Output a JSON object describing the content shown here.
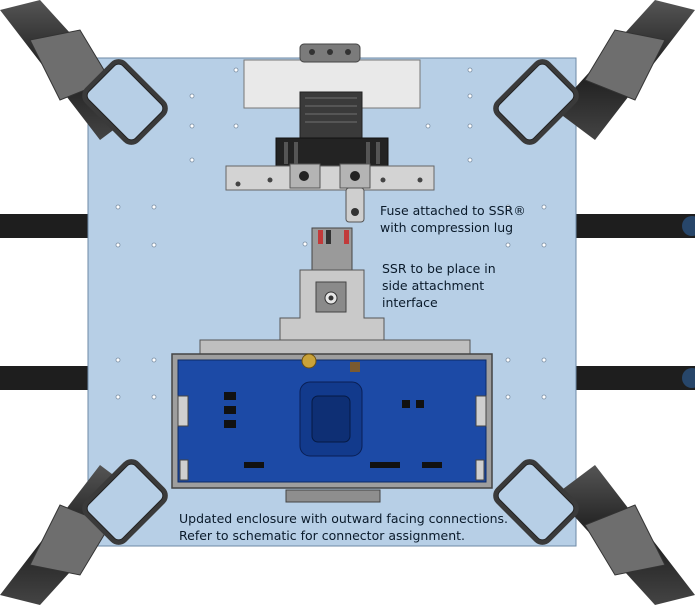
{
  "annotations": {
    "fuse": "Fuse attached to SSR®\nwith compression lug",
    "ssr": "SSR to be place in\nside attachment\ninterface",
    "enclosure": "Updated enclosure with outward facing connections.\nRefer to schematic for connector assignment."
  },
  "colors": {
    "plate": "#b7cfe6",
    "pcb": "#1a4aa8",
    "metal": "#8a8a8a",
    "arm": "#2a2a2a",
    "bracket": "#cfcfcf"
  }
}
